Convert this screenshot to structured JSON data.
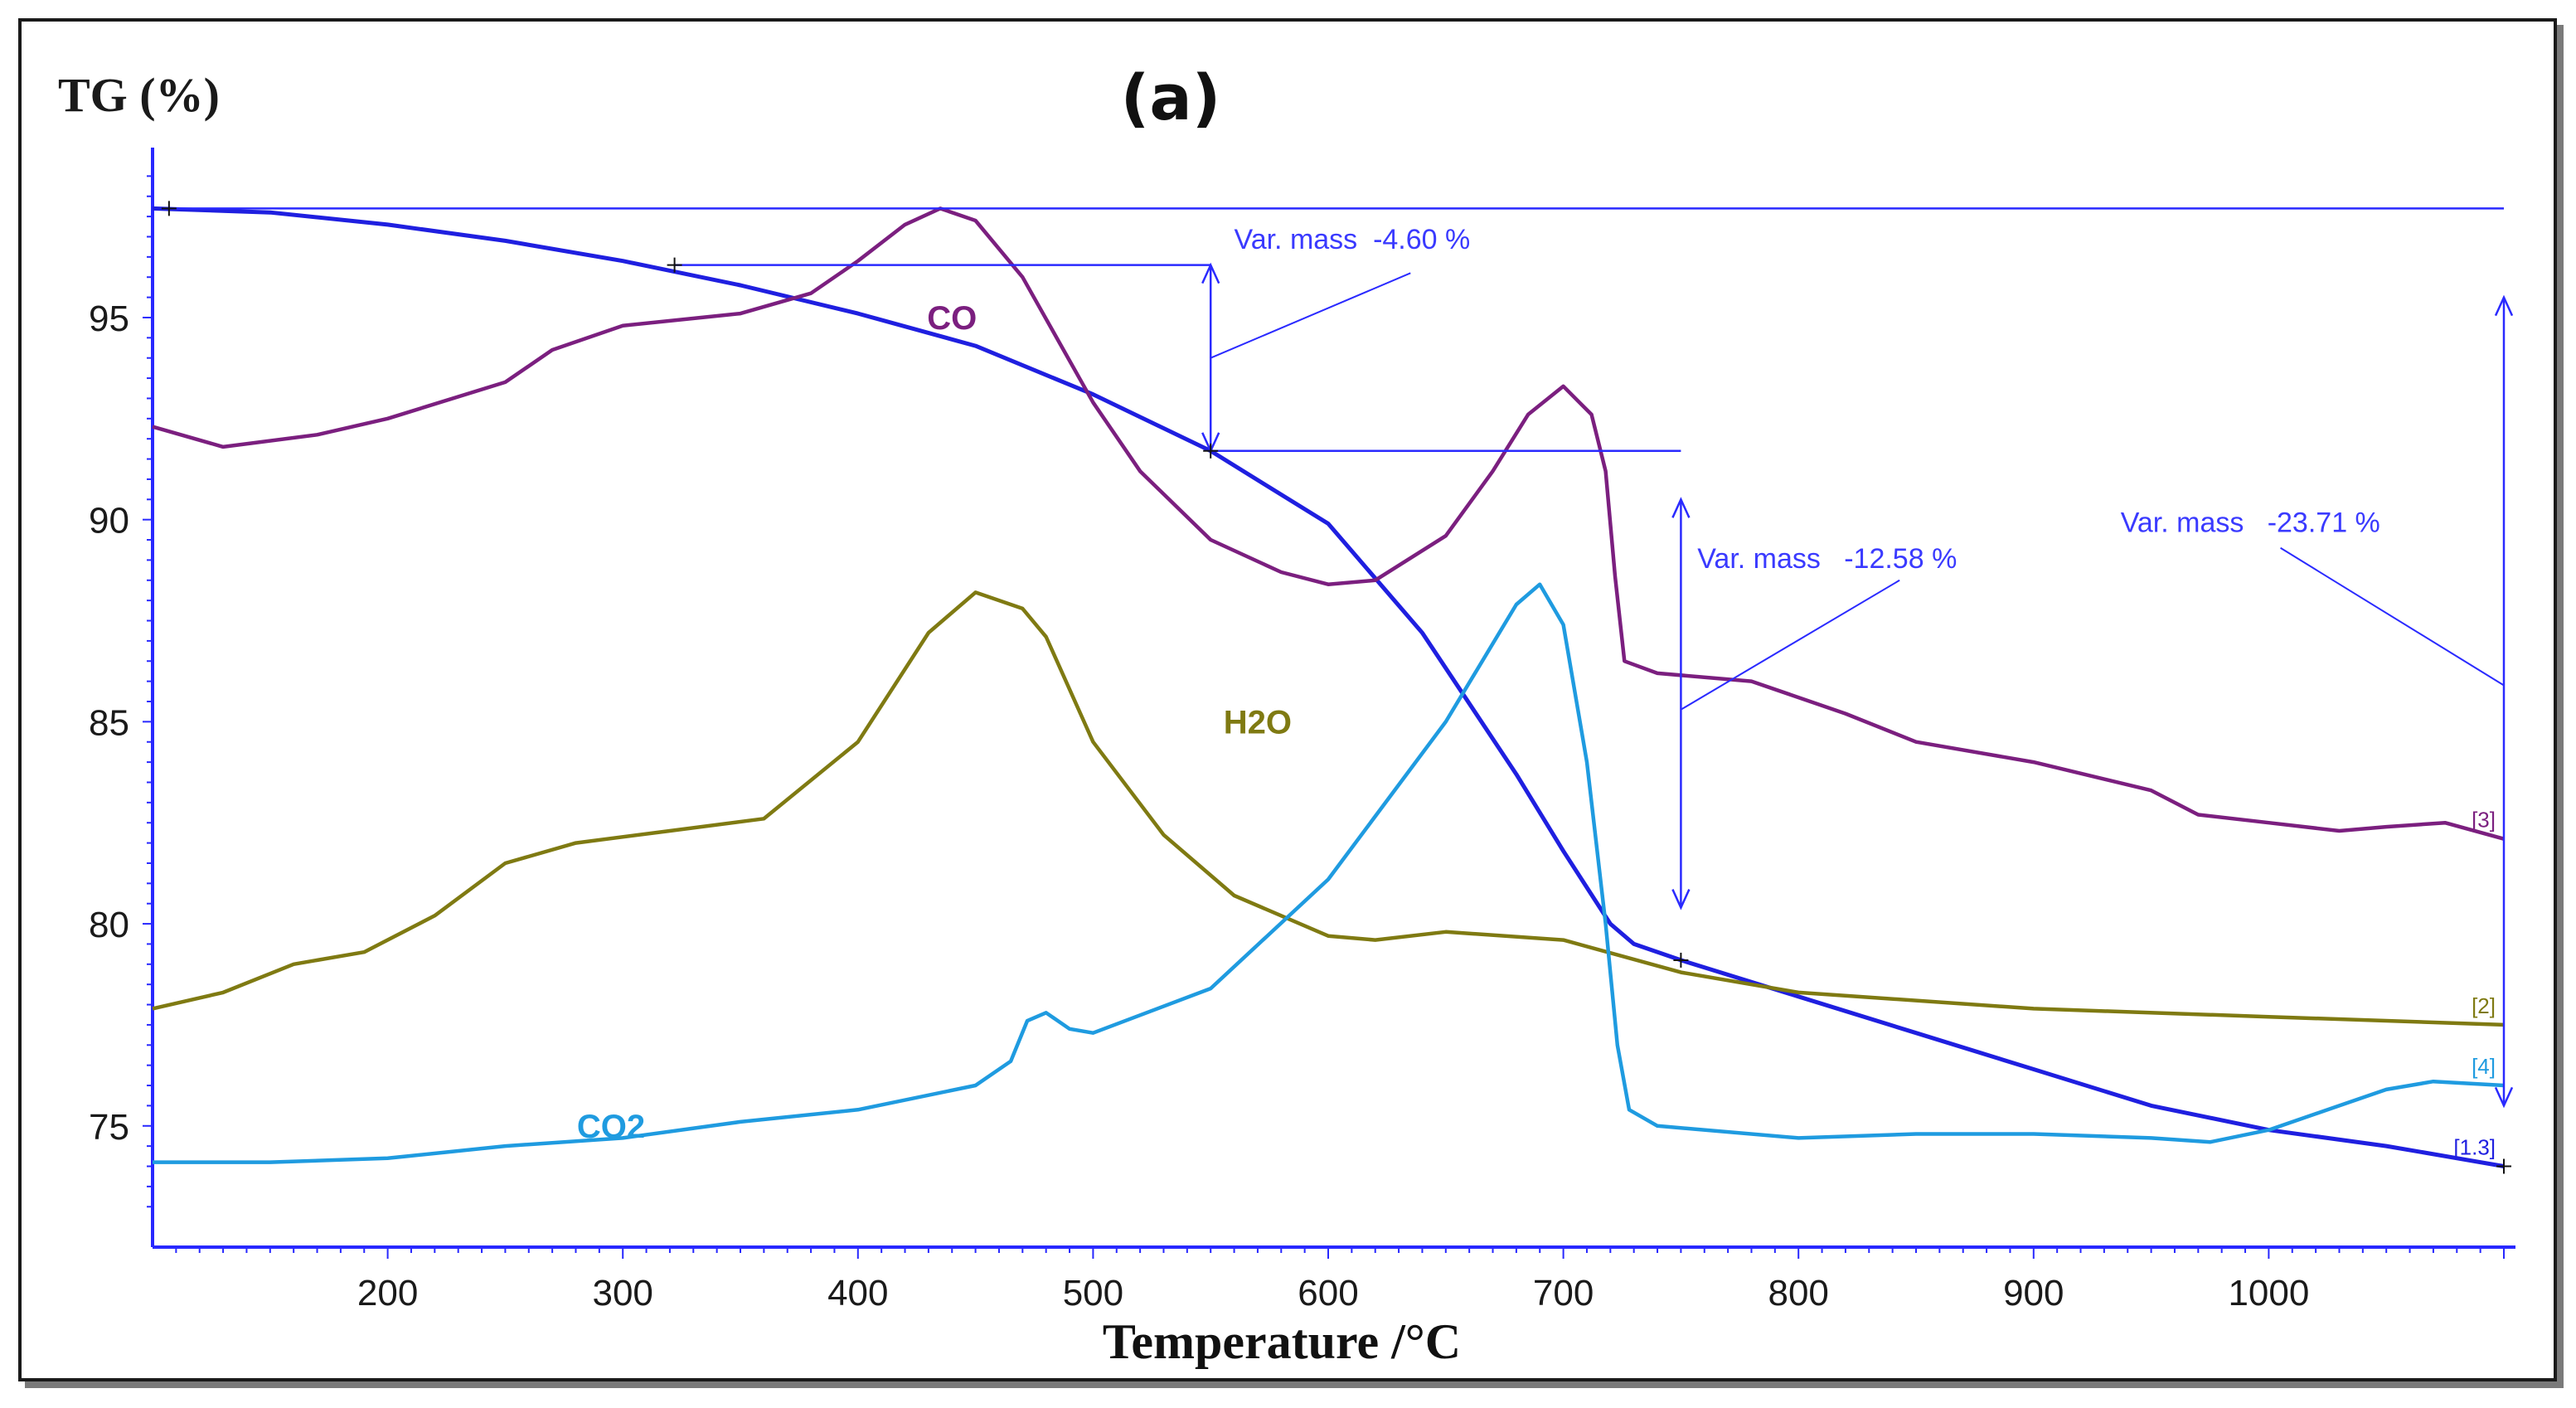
{
  "chart_data": {
    "type": "line",
    "panel_label": "(a)",
    "ylabel": "TG (%)",
    "xlabel": "Temperature /°C",
    "xlim": [
      100,
      1100
    ],
    "ylim": [
      72,
      99
    ],
    "xticks": [
      200,
      300,
      400,
      500,
      600,
      700,
      800,
      900,
      1000
    ],
    "yticks": [
      75,
      80,
      85,
      90,
      95
    ],
    "series": [
      {
        "name": "TG",
        "label": "",
        "end_label": "[1.3]",
        "color": "#1f1fe0",
        "x": [
          100,
          150,
          200,
          250,
          300,
          350,
          400,
          450,
          500,
          550,
          600,
          640,
          680,
          700,
          720,
          730,
          750,
          800,
          850,
          900,
          950,
          1000,
          1050,
          1100
        ],
        "y": [
          97.7,
          97.6,
          97.3,
          96.9,
          96.4,
          95.8,
          95.1,
          94.3,
          93.1,
          91.7,
          89.9,
          87.2,
          83.7,
          81.8,
          80.0,
          79.5,
          79.1,
          78.2,
          77.3,
          76.4,
          75.5,
          74.9,
          74.5,
          74.0
        ]
      },
      {
        "name": "CO",
        "label": "CO",
        "end_label": "[3]",
        "color": "#7b1f7f",
        "x": [
          100,
          130,
          170,
          200,
          250,
          270,
          300,
          350,
          380,
          400,
          420,
          435,
          450,
          470,
          500,
          520,
          550,
          580,
          600,
          620,
          650,
          670,
          685,
          700,
          712,
          718,
          722,
          726,
          740,
          780,
          820,
          850,
          900,
          950,
          970,
          1000,
          1030,
          1050,
          1075,
          1100
        ],
        "y": [
          92.3,
          91.8,
          92.1,
          92.5,
          93.4,
          94.2,
          94.8,
          95.1,
          95.6,
          96.4,
          97.3,
          97.7,
          97.4,
          96.0,
          92.9,
          91.2,
          89.5,
          88.7,
          88.4,
          88.5,
          89.6,
          91.2,
          92.6,
          93.3,
          92.6,
          91.2,
          88.6,
          86.5,
          86.2,
          86.0,
          85.2,
          84.5,
          84.0,
          83.3,
          82.7,
          82.5,
          82.3,
          82.4,
          82.5,
          82.1
        ]
      },
      {
        "name": "H2O",
        "label": "H2O",
        "end_label": "[2]",
        "color": "#7f7a12",
        "x": [
          100,
          130,
          160,
          190,
          220,
          250,
          280,
          320,
          360,
          400,
          430,
          450,
          470,
          480,
          500,
          530,
          560,
          600,
          620,
          650,
          700,
          750,
          800,
          900,
          1000,
          1100
        ],
        "y": [
          77.9,
          78.3,
          79.0,
          79.3,
          80.2,
          81.5,
          82.0,
          82.3,
          82.6,
          84.5,
          87.2,
          88.2,
          87.8,
          87.1,
          84.5,
          82.2,
          80.7,
          79.7,
          79.6,
          79.8,
          79.6,
          78.8,
          78.3,
          77.9,
          77.7,
          77.5
        ]
      },
      {
        "name": "CO2",
        "label": "CO2",
        "end_label": "[4]",
        "color": "#1f9be0",
        "x": [
          100,
          150,
          200,
          250,
          300,
          350,
          400,
          450,
          465,
          472,
          480,
          490,
          500,
          550,
          600,
          650,
          680,
          690,
          700,
          710,
          718,
          723,
          728,
          740,
          800,
          850,
          900,
          950,
          975,
          1000,
          1030,
          1050,
          1070,
          1100
        ],
        "y": [
          74.1,
          74.1,
          74.2,
          74.5,
          74.7,
          75.1,
          75.4,
          76.0,
          76.6,
          77.6,
          77.8,
          77.4,
          77.3,
          78.4,
          81.1,
          85.0,
          87.9,
          88.4,
          87.4,
          84.0,
          80.0,
          77.0,
          75.4,
          75.0,
          74.7,
          74.8,
          74.8,
          74.7,
          74.6,
          74.9,
          75.5,
          75.9,
          76.1,
          76.0
        ]
      }
    ],
    "annotations": [
      {
        "text": "Var. mass  -4.60 %",
        "x": 560,
        "y": 96.7,
        "from_x": 322,
        "from_y": 96.3,
        "to_x": 550,
        "to_y": 91.7
      },
      {
        "text": "Var. mass   -12.58 %",
        "x": 757,
        "y": 88.8,
        "from_x": 550,
        "from_y": 91.7,
        "to_x": 750,
        "to_y": 79.1
      },
      {
        "text": "Var. mass   -23.71 %",
        "x": 937,
        "y": 89.7,
        "from_x": 107,
        "from_y": 97.7,
        "to_x": 1100,
        "to_y": 74.0
      }
    ],
    "grid": false,
    "legend": "inline labels"
  }
}
